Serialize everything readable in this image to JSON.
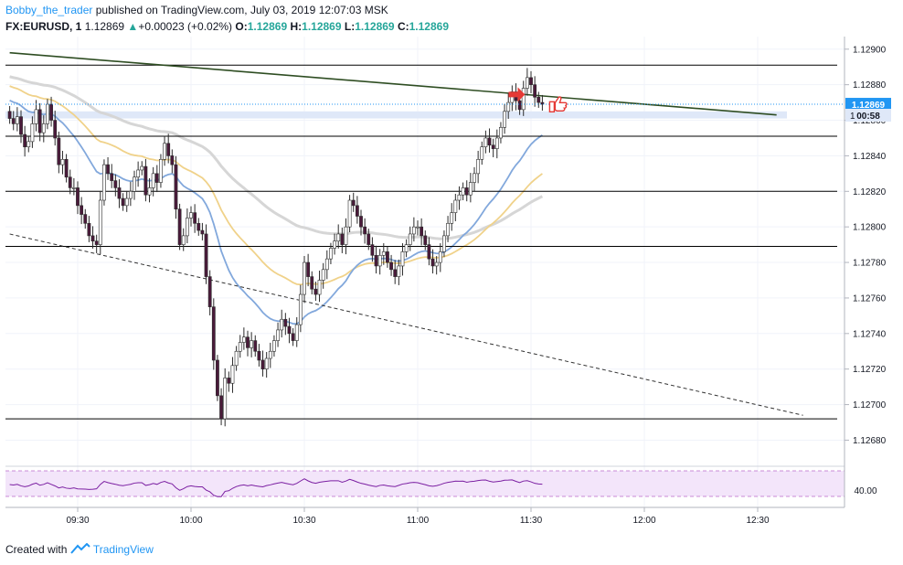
{
  "header": {
    "author": "Bobby_the_trader",
    "published_text": "published on TradingView.com, July 03, 2019 12:07:03 MSK",
    "symbol": "FX:EURUSD, 1",
    "last": "1.12869",
    "change": "+0.00023 (+0.02%)",
    "open_label": "O:",
    "open": "1.12869",
    "high_label": "H:",
    "high": "1.12869",
    "low_label": "L:",
    "low": "1.12869",
    "close_label": "C:",
    "close": "1.12869",
    "up_arrow_icon": "up-triangle-icon"
  },
  "price_badge": {
    "value": "1.12869",
    "countdown": "00:58",
    "color": "#2196f3"
  },
  "rsi_badge": {
    "value": "40.00"
  },
  "footer": {
    "created_with": "Created with",
    "brand": "TradingView",
    "logo_icon": "tradingview-logo-icon"
  },
  "colors": {
    "bull_candle": "#ffffff",
    "bear_candle": "#4a1a3a",
    "candle_border": "#2b2b2b",
    "ema_blue": "#82a8dc",
    "ema_yellow": "#f0d28a",
    "ema_grey": "#d6d6d6",
    "trendline": "#2e4d22",
    "hline": "#000000",
    "zone": "#dfe8f8",
    "rsi_line": "#7b1fa2",
    "rsi_fill": "#f3e5fa",
    "thumbs_up": "#e53935",
    "arrow": "#e53935"
  },
  "chart_data": [
    {
      "type": "candlestick",
      "symbol": "FX:EURUSD",
      "timeframe": "1",
      "x_ticks": [
        "09:30",
        "10:00",
        "10:30",
        "11:00",
        "11:30",
        "12:00",
        "12:30"
      ],
      "y_ticks": [
        "1.12900",
        "1.12880",
        "1.12860",
        "1.12840",
        "1.12820",
        "1.12800",
        "1.12780",
        "1.12760",
        "1.12740",
        "1.12720",
        "1.12700",
        "1.12680"
      ],
      "ylim": [
        1.12672,
        1.12904
      ],
      "current_price": 1.12869,
      "horizontal_levels": [
        1.12891,
        1.12851,
        1.1282,
        1.12789,
        1.12692
      ],
      "zone": [
        1.12861,
        1.12865
      ],
      "trendline": {
        "from": [
          "09:12",
          1.12898
        ],
        "to": [
          "12:35",
          1.12863
        ]
      },
      "dashed_trendline": {
        "from": [
          "09:12",
          1.12796
        ],
        "to": [
          "12:42",
          1.12694
        ]
      },
      "close": [
        1.12861,
        1.12858,
        1.12862,
        1.12852,
        1.12845,
        1.12848,
        1.12858,
        1.12866,
        1.12853,
        1.12858,
        1.12869,
        1.1286,
        1.1285,
        1.12835,
        1.12838,
        1.12828,
        1.12822,
        1.12822,
        1.12812,
        1.12807,
        1.12802,
        1.12795,
        1.12792,
        1.1279,
        1.12815,
        1.12835,
        1.1283,
        1.12826,
        1.12822,
        1.12816,
        1.12812,
        1.12816,
        1.1282,
        1.12828,
        1.12832,
        1.12834,
        1.12818,
        1.12822,
        1.1283,
        1.12825,
        1.12838,
        1.12847,
        1.1284,
        1.12835,
        1.1281,
        1.1279,
        1.12795,
        1.12805,
        1.12808,
        1.12802,
        1.12798,
        1.12796,
        1.12772,
        1.12755,
        1.12725,
        1.12705,
        1.12692,
        1.12715,
        1.12712,
        1.12722,
        1.1273,
        1.12735,
        1.12738,
        1.12732,
        1.12736,
        1.1273,
        1.12725,
        1.1272,
        1.12726,
        1.1273,
        1.12736,
        1.12742,
        1.12748,
        1.12744,
        1.1274,
        1.12736,
        1.12745,
        1.12762,
        1.1278,
        1.12772,
        1.12765,
        1.12762,
        1.1277,
        1.12776,
        1.12782,
        1.12788,
        1.12792,
        1.12796,
        1.1279,
        1.128,
        1.12815,
        1.12812,
        1.12806,
        1.128,
        1.12796,
        1.1279,
        1.12784,
        1.12778,
        1.12784,
        1.12786,
        1.1278,
        1.12776,
        1.12772,
        1.12778,
        1.12786,
        1.1279,
        1.12796,
        1.128,
        1.128,
        1.12795,
        1.1279,
        1.12782,
        1.12778,
        1.1278,
        1.12786,
        1.12795,
        1.12802,
        1.12808,
        1.12815,
        1.12818,
        1.12822,
        1.12818,
        1.12825,
        1.1283,
        1.12838,
        1.12845,
        1.1285,
        1.12846,
        1.12844,
        1.1285,
        1.12856,
        1.12865,
        1.1287,
        1.12876,
        1.12871,
        1.12866,
        1.12878,
        1.12884,
        1.1288,
        1.12873,
        1.1287,
        1.12869
      ],
      "indicator": {
        "name": "RSI",
        "level": 40.0,
        "upper_band": 70,
        "lower_band": 30
      }
    }
  ]
}
